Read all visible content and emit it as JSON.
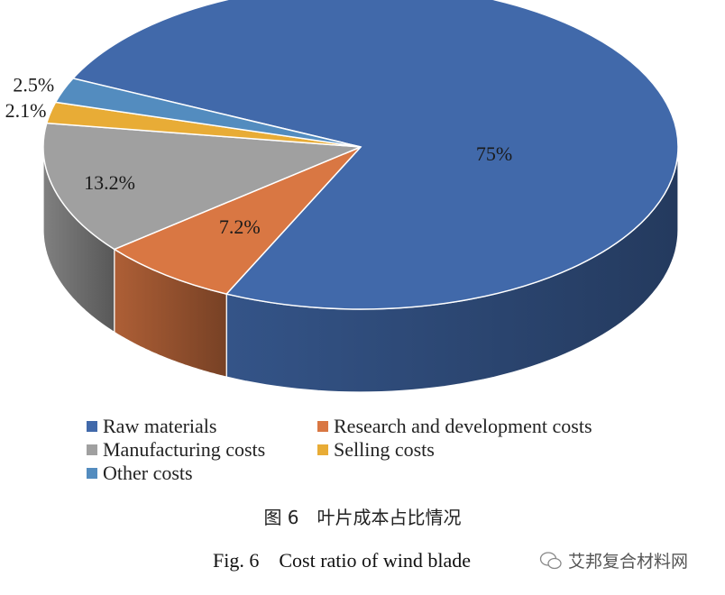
{
  "chart_data": {
    "type": "pie",
    "style": "3d",
    "title": "",
    "slices": [
      {
        "name": "Raw materials",
        "value": 75,
        "label": "75%",
        "color": "#4169aa"
      },
      {
        "name": "Research and development costs",
        "value": 7.2,
        "label": "7.2%",
        "color": "#d97743"
      },
      {
        "name": "Manufacturing costs",
        "value": 13.2,
        "label": "13.2%",
        "color": "#a0a0a0"
      },
      {
        "name": "Selling costs",
        "value": 2.1,
        "label": "2.1%",
        "color": "#e8ac36"
      },
      {
        "name": "Other costs",
        "value": 2.5,
        "label": "2.5%",
        "color": "#538cbf"
      }
    ],
    "legend_placement": "bottom"
  },
  "legend": [
    "Raw materials",
    "Research and development costs",
    "Manufacturing costs",
    "Selling costs",
    "Other costs"
  ],
  "caption": {
    "cn": "图 6　叶片成本占比情况",
    "en": "Fig. 6　Cost ratio of wind blade"
  },
  "watermark": {
    "text": "艾邦复合材料网",
    "icon": "wechat-icon"
  }
}
